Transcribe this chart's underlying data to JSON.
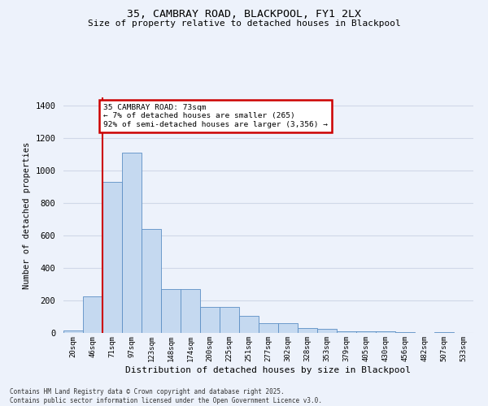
{
  "title_line1": "35, CAMBRAY ROAD, BLACKPOOL, FY1 2LX",
  "title_line2": "Size of property relative to detached houses in Blackpool",
  "xlabel": "Distribution of detached houses by size in Blackpool",
  "ylabel": "Number of detached properties",
  "categories": [
    "20sqm",
    "46sqm",
    "71sqm",
    "97sqm",
    "123sqm",
    "148sqm",
    "174sqm",
    "200sqm",
    "225sqm",
    "251sqm",
    "277sqm",
    "302sqm",
    "328sqm",
    "353sqm",
    "379sqm",
    "405sqm",
    "430sqm",
    "456sqm",
    "482sqm",
    "507sqm",
    "533sqm"
  ],
  "values": [
    15,
    225,
    930,
    1110,
    640,
    270,
    270,
    160,
    160,
    105,
    60,
    60,
    30,
    25,
    12,
    10,
    8,
    5,
    0,
    5,
    0
  ],
  "bar_color": "#c5d9f0",
  "bar_edge_color": "#5b8ec4",
  "bg_color": "#edf2fb",
  "grid_color": "#d0d8e8",
  "annotation_text": "35 CAMBRAY ROAD: 73sqm\n← 7% of detached houses are smaller (265)\n92% of semi-detached houses are larger (3,356) →",
  "annotation_box_color": "#ffffff",
  "annotation_box_edge": "#cc0000",
  "redline_color": "#cc0000",
  "redline_x": 1.5,
  "ylim": [
    0,
    1450
  ],
  "yticks": [
    0,
    200,
    400,
    600,
    800,
    1000,
    1200,
    1400
  ],
  "footnote": "Contains HM Land Registry data © Crown copyright and database right 2025.\nContains public sector information licensed under the Open Government Licence v3.0."
}
